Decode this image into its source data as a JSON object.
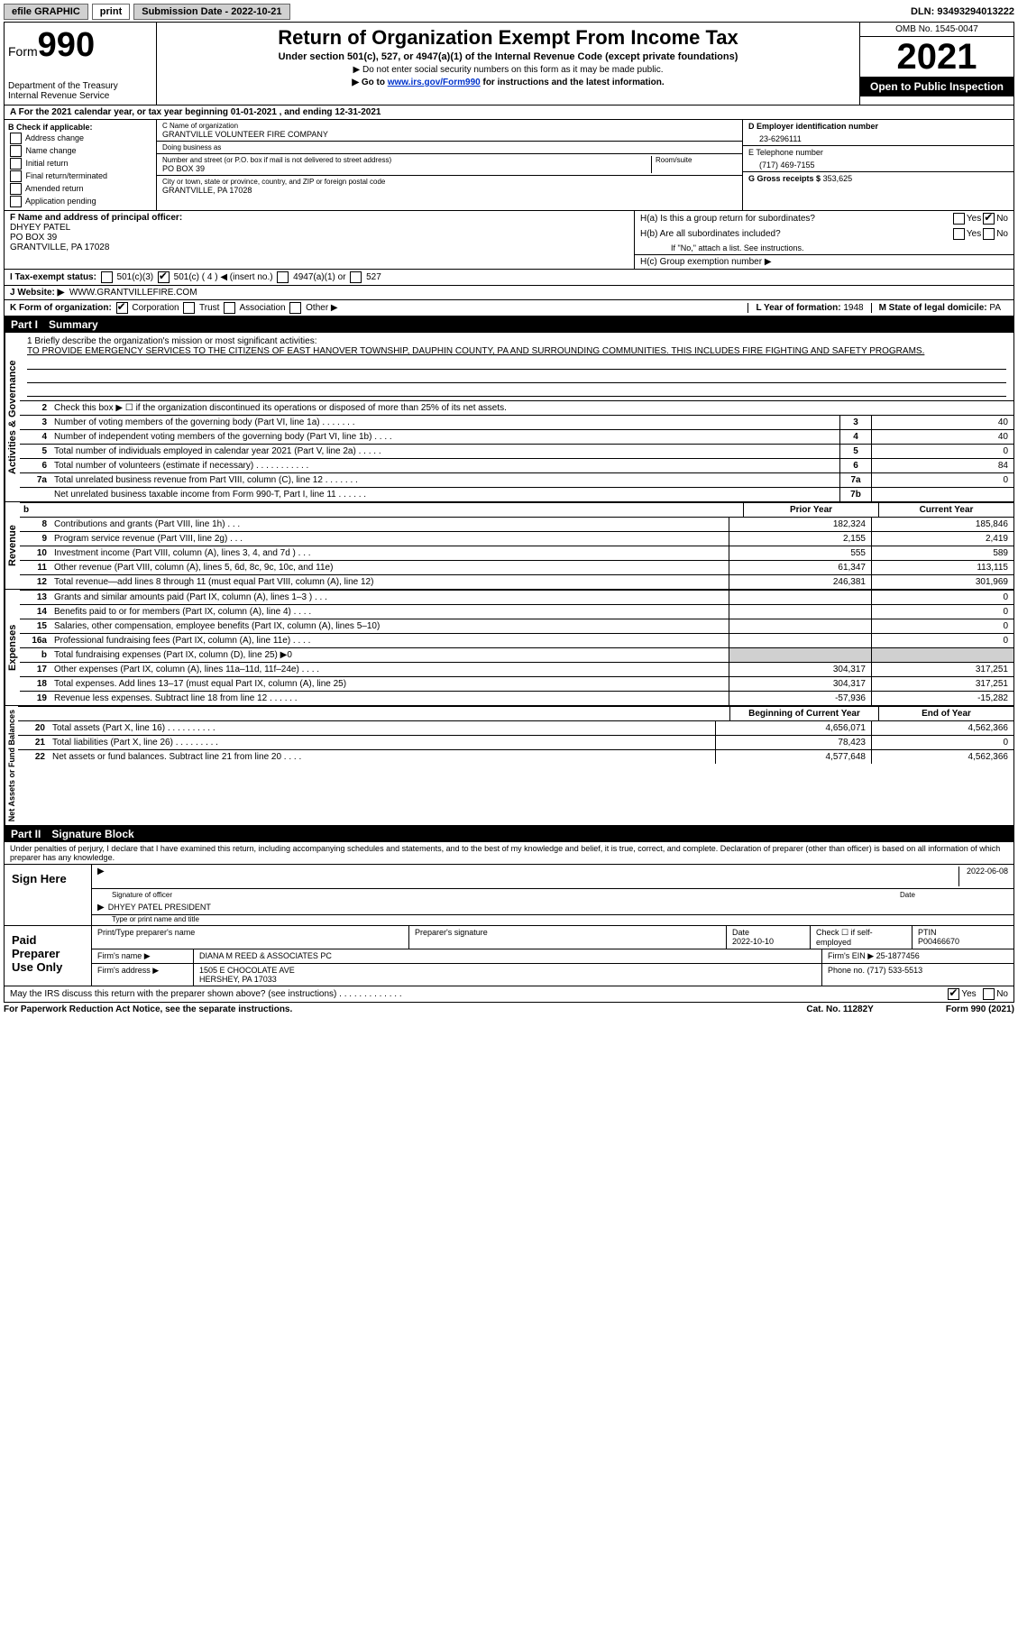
{
  "topbar": {
    "efile": "efile GRAPHIC",
    "print": "print",
    "sub_label": "Submission Date - 2022-10-21",
    "dln": "DLN: 93493294013222"
  },
  "header": {
    "form_prefix": "Form",
    "form_number": "990",
    "dept": "Department of the Treasury",
    "irs": "Internal Revenue Service",
    "title": "Return of Organization Exempt From Income Tax",
    "subtitle": "Under section 501(c), 527, or 4947(a)(1) of the Internal Revenue Code (except private foundations)",
    "note1": "▶ Do not enter social security numbers on this form as it may be made public.",
    "note2_pre": "▶ Go to ",
    "note2_link": "www.irs.gov/Form990",
    "note2_post": " for instructions and the latest information.",
    "omb": "OMB No. 1545-0047",
    "year": "2021",
    "inspect": "Open to Public Inspection"
  },
  "row_a": "A   For the 2021 calendar year, or tax year beginning 01-01-2021    , and ending 12-31-2021",
  "box_b": {
    "title": "B Check if applicable:",
    "items": [
      "Address change",
      "Name change",
      "Initial return",
      "Final return/terminated",
      "Amended return",
      "Application pending"
    ]
  },
  "box_c": {
    "name_lbl": "C Name of organization",
    "name": "GRANTVILLE VOLUNTEER FIRE COMPANY",
    "dba_lbl": "Doing business as",
    "dba": "",
    "addr_lbl": "Number and street (or P.O. box if mail is not delivered to street address)",
    "room_lbl": "Room/suite",
    "addr": "PO BOX 39",
    "city_lbl": "City or town, state or province, country, and ZIP or foreign postal code",
    "city": "GRANTVILLE, PA  17028"
  },
  "box_d": {
    "lbl": "D Employer identification number",
    "val": "23-6296111"
  },
  "box_e": {
    "lbl": "E Telephone number",
    "val": "(717) 469-7155"
  },
  "box_g": {
    "lbl": "G Gross receipts $",
    "val": "353,625"
  },
  "box_f": {
    "lbl": "F  Name and address of principal officer:",
    "name": "DHYEY PATEL",
    "addr1": "PO BOX 39",
    "addr2": "GRANTVILLE, PA  17028"
  },
  "box_h": {
    "a": "H(a)  Is this a group return for subordinates?",
    "b": "H(b)  Are all subordinates included?",
    "b_note": "If \"No,\" attach a list. See instructions.",
    "c": "H(c)  Group exemption number ▶",
    "yes": "Yes",
    "no": "No"
  },
  "box_i": {
    "lbl": "I   Tax-exempt status:",
    "o1": "501(c)(3)",
    "o2": "501(c) ( 4 ) ◀ (insert no.)",
    "o3": "4947(a)(1) or",
    "o4": "527"
  },
  "box_j": {
    "lbl": "J   Website: ▶",
    "val": "WWW.GRANTVILLEFIRE.COM"
  },
  "box_k": {
    "lbl": "K Form of organization:",
    "o1": "Corporation",
    "o2": "Trust",
    "o3": "Association",
    "o4": "Other ▶"
  },
  "box_l": {
    "lbl": "L Year of formation:",
    "val": "1948"
  },
  "box_m": {
    "lbl": "M State of legal domicile:",
    "val": "PA"
  },
  "part1": {
    "label": "Part I",
    "title": "Summary"
  },
  "mission": {
    "q": "1   Briefly describe the organization's mission or most significant activities:",
    "text": "TO PROVIDE EMERGENCY SERVICES TO THE CITIZENS OF EAST HANOVER TOWNSHIP, DAUPHIN COUNTY, PA AND SURROUNDING COMMUNITIES. THIS INCLUDES FIRE FIGHTING AND SAFETY PROGRAMS."
  },
  "vlabels": {
    "gov": "Activities & Governance",
    "rev": "Revenue",
    "exp": "Expenses",
    "net": "Net Assets or Fund Balances"
  },
  "lines_gov": [
    {
      "n": "2",
      "d": "Check this box ▶ ☐  if the organization discontinued its operations or disposed of more than 25% of its net assets."
    },
    {
      "n": "3",
      "d": "Number of voting members of the governing body (Part VI, line 1a)   .    .    .    .    .    .    .",
      "box": "3",
      "val": "40"
    },
    {
      "n": "4",
      "d": "Number of independent voting members of the governing body (Part VI, line 1b)   .    .    .    .",
      "box": "4",
      "val": "40"
    },
    {
      "n": "5",
      "d": "Total number of individuals employed in calendar year 2021 (Part V, line 2a)   .    .    .    .    .",
      "box": "5",
      "val": "0"
    },
    {
      "n": "6",
      "d": "Total number of volunteers (estimate if necessary)    .    .    .    .    .    .    .    .    .    .    .",
      "box": "6",
      "val": "84"
    },
    {
      "n": "7a",
      "d": "Total unrelated business revenue from Part VIII, column (C), line 12   .    .    .    .    .    .    .",
      "box": "7a",
      "val": "0"
    },
    {
      "n": "",
      "d": "Net unrelated business taxable income from Form 990-T, Part I, line 11   .    .    .    .    .    .",
      "box": "7b",
      "val": ""
    }
  ],
  "col_hdr": {
    "b": "b",
    "prior": "Prior Year",
    "curr": "Current Year"
  },
  "lines_rev": [
    {
      "n": "8",
      "d": "Contributions and grants (Part VIII, line 1h)    .    .    .",
      "p": "182,324",
      "c": "185,846"
    },
    {
      "n": "9",
      "d": "Program service revenue (Part VIII, line 2g)   .    .    .",
      "p": "2,155",
      "c": "2,419"
    },
    {
      "n": "10",
      "d": "Investment income (Part VIII, column (A), lines 3, 4, and 7d )    .    .    .",
      "p": "555",
      "c": "589"
    },
    {
      "n": "11",
      "d": "Other revenue (Part VIII, column (A), lines 5, 6d, 8c, 9c, 10c, and 11e)",
      "p": "61,347",
      "c": "113,115"
    },
    {
      "n": "12",
      "d": "Total revenue—add lines 8 through 11 (must equal Part VIII, column (A), line 12)",
      "p": "246,381",
      "c": "301,969"
    }
  ],
  "lines_exp": [
    {
      "n": "13",
      "d": "Grants and similar amounts paid (Part IX, column (A), lines 1–3 )    .    .    .",
      "p": "",
      "c": "0"
    },
    {
      "n": "14",
      "d": "Benefits paid to or for members (Part IX, column (A), line 4)   .    .    .    .",
      "p": "",
      "c": "0"
    },
    {
      "n": "15",
      "d": "Salaries, other compensation, employee benefits (Part IX, column (A), lines 5–10)",
      "p": "",
      "c": "0"
    },
    {
      "n": "16a",
      "d": "Professional fundraising fees (Part IX, column (A), line 11e)   .    .    .    .",
      "p": "",
      "c": "0"
    },
    {
      "n": "b",
      "d": "Total fundraising expenses (Part IX, column (D), line 25) ▶0",
      "p": "GREY",
      "c": "GREY"
    },
    {
      "n": "17",
      "d": "Other expenses (Part IX, column (A), lines 11a–11d, 11f–24e)    .    .    .    .",
      "p": "304,317",
      "c": "317,251"
    },
    {
      "n": "18",
      "d": "Total expenses. Add lines 13–17 (must equal Part IX, column (A), line 25)",
      "p": "304,317",
      "c": "317,251"
    },
    {
      "n": "19",
      "d": "Revenue less expenses. Subtract line 18 from line 12   .    .    .    .    .    .",
      "p": "-57,936",
      "c": "-15,282"
    }
  ],
  "col_hdr2": {
    "prior": "Beginning of Current Year",
    "curr": "End of Year"
  },
  "lines_net": [
    {
      "n": "20",
      "d": "Total assets (Part X, line 16)   .    .    .    .    .    .    .    .    .    .",
      "p": "4,656,071",
      "c": "4,562,366"
    },
    {
      "n": "21",
      "d": "Total liabilities (Part X, line 26)    .    .    .    .    .    .    .    .    .",
      "p": "78,423",
      "c": "0"
    },
    {
      "n": "22",
      "d": "Net assets or fund balances. Subtract line 21 from line 20   .    .    .    .",
      "p": "4,577,648",
      "c": "4,562,366"
    }
  ],
  "part2": {
    "label": "Part II",
    "title": "Signature Block"
  },
  "sig": {
    "penalty": "Under penalties of perjury, I declare that I have examined this return, including accompanying schedules and statements, and to the best of my knowledge and belief, it is true, correct, and complete. Declaration of preparer (other than officer) is based on all information of which preparer has any knowledge.",
    "sign_here": "Sign Here",
    "sig_officer_lbl": "Signature of officer",
    "date_lbl": "Date",
    "date": "2022-06-08",
    "name": "DHYEY PATEL  PRESIDENT",
    "name_lbl": "Type or print name and title",
    "paid": "Paid Preparer Use Only",
    "prep_name_lbl": "Print/Type preparer's name",
    "prep_name": "",
    "prep_sig_lbl": "Preparer's signature",
    "prep_date_lbl": "Date",
    "prep_date": "2022-10-10",
    "self_lbl": "Check ☐ if self-employed",
    "ptin_lbl": "PTIN",
    "ptin": "P00466670",
    "firm_name_lbl": "Firm's name    ▶",
    "firm_name": "DIANA M REED & ASSOCIATES PC",
    "firm_ein_lbl": "Firm's EIN ▶",
    "firm_ein": "25-1877456",
    "firm_addr_lbl": "Firm's address ▶",
    "firm_addr": "1505 E CHOCOLATE AVE",
    "firm_city": "HERSHEY, PA  17033",
    "phone_lbl": "Phone no.",
    "phone": "(717) 533-5513",
    "discuss": "May the IRS discuss this return with the preparer shown above? (see instructions)    .    .    .    .    .    .    .    .    .    .    .    .    .",
    "yes": "Yes",
    "no": "No"
  },
  "footer": {
    "left": "For Paperwork Reduction Act Notice, see the separate instructions.",
    "mid": "Cat. No. 11282Y",
    "right": "Form 990 (2021)"
  }
}
